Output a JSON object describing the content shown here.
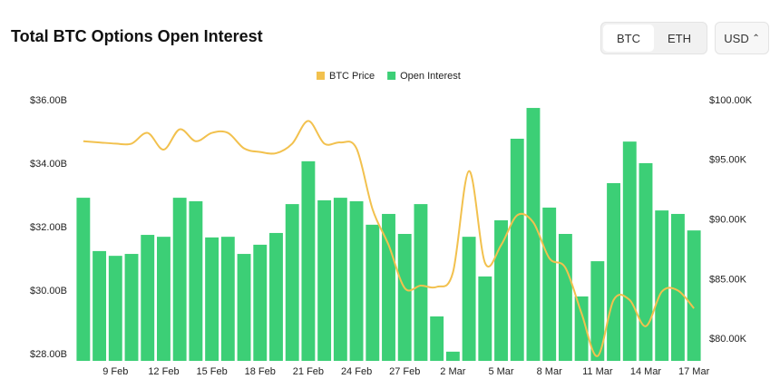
{
  "chart_data": {
    "type": "combo",
    "title": "Total BTC Options Open Interest",
    "categories": [
      null,
      null,
      "9 Feb",
      null,
      null,
      "12 Feb",
      null,
      null,
      "15 Feb",
      null,
      null,
      "18 Feb",
      null,
      null,
      "21 Feb",
      null,
      null,
      "24 Feb",
      null,
      null,
      "27 Feb",
      null,
      null,
      "2 Mar",
      null,
      null,
      "5 Mar",
      null,
      null,
      "8 Mar",
      null,
      null,
      "11 Mar",
      null,
      null,
      "14 Mar",
      null,
      null,
      "17 Mar"
    ],
    "series": [
      {
        "name": "BTC Price",
        "type": "line",
        "axis": "y2",
        "color": "#f2c14e",
        "values": [
          96.6,
          96.5,
          96.4,
          96.4,
          97.3,
          95.9,
          97.6,
          96.6,
          97.3,
          97.3,
          96.0,
          95.7,
          95.6,
          96.4,
          98.3,
          96.4,
          96.5,
          96.0,
          90.9,
          87.9,
          84.3,
          84.5,
          84.4,
          85.6,
          94.1,
          86.4,
          87.9,
          90.4,
          89.8,
          86.8,
          86.0,
          82.2,
          78.6,
          83.3,
          83.3,
          81.1,
          84.0,
          84.1,
          82.6
        ]
      },
      {
        "name": "Open Interest",
        "type": "bar",
        "color": "#3ccf76",
        "values": [
          32.94,
          31.26,
          31.11,
          31.17,
          31.77,
          31.71,
          32.94,
          32.83,
          31.69,
          31.71,
          31.17,
          31.46,
          31.83,
          32.74,
          34.09,
          32.86,
          32.94,
          32.83,
          32.09,
          32.43,
          31.8,
          32.74,
          29.2,
          28.09,
          31.71,
          30.46,
          32.23,
          34.8,
          35.77,
          32.63,
          31.8,
          29.83,
          30.94,
          33.4,
          34.71,
          34.03,
          32.54,
          32.43,
          31.91
        ]
      }
    ],
    "ylim": [
      27.8,
      36
    ],
    "yticks": [
      {
        "value": 28,
        "label": "$28.00B"
      },
      {
        "value": 30,
        "label": "$30.00B"
      },
      {
        "value": 32,
        "label": "$32.00B"
      },
      {
        "value": 34,
        "label": "$34.00B"
      },
      {
        "value": 36,
        "label": "$36.00B"
      }
    ],
    "y2lim": [
      78.2,
      100
    ],
    "y2ticks": [
      {
        "value": 80,
        "label": "$80.00K"
      },
      {
        "value": 85,
        "label": "$85.00K"
      },
      {
        "value": 90,
        "label": "$90.00K"
      },
      {
        "value": 95,
        "label": "$95.00K"
      },
      {
        "value": 100,
        "label": "$100.00K"
      }
    ],
    "legend": "top"
  },
  "controls": {
    "assets": [
      "BTC",
      "ETH"
    ],
    "currency": "USD"
  }
}
